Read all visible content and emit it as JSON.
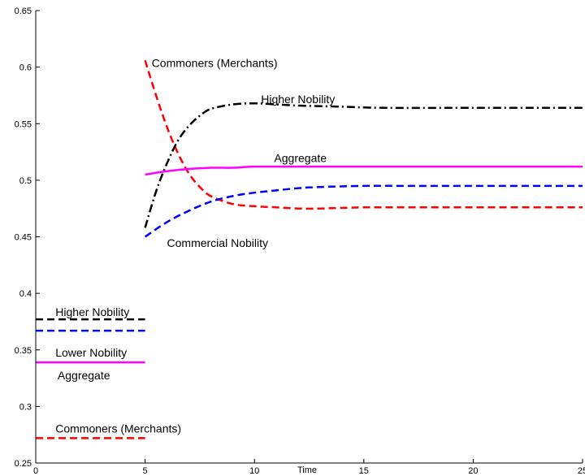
{
  "chart_data": {
    "type": "line",
    "title": "",
    "xlabel": "Time",
    "ylabel": "",
    "xlim": [
      0,
      25
    ],
    "ylim": [
      0.25,
      0.65
    ],
    "xticks": [
      0,
      5,
      10,
      15,
      20,
      25
    ],
    "yticks": [
      0.25,
      0.3,
      0.35,
      0.4,
      0.45,
      0.5,
      0.55,
      0.6,
      0.65
    ],
    "grid": false,
    "legend": "none",
    "series": [
      {
        "key": "pre-higher",
        "color": "#000000",
        "style": "dashed",
        "x": [
          0,
          5
        ],
        "y": [
          0.377,
          0.377
        ]
      },
      {
        "key": "pre-lower",
        "color": "#0000ff",
        "style": "dashed",
        "x": [
          0,
          5
        ],
        "y": [
          0.367,
          0.367
        ]
      },
      {
        "key": "pre-aggregate",
        "color": "#ff00ff",
        "style": "solid",
        "x": [
          0,
          5
        ],
        "y": [
          0.339,
          0.339
        ]
      },
      {
        "key": "pre-commoners",
        "color": "#ff0000",
        "style": "dashed",
        "x": [
          0,
          5
        ],
        "y": [
          0.272,
          0.272
        ]
      },
      {
        "key": "post-commoners",
        "color": "#ff0000",
        "style": "dashed",
        "x": [
          5,
          5.5,
          6,
          6.5,
          7,
          7.5,
          8,
          9,
          10,
          11,
          12,
          13,
          15,
          18,
          20,
          25
        ],
        "y": [
          0.606,
          0.575,
          0.547,
          0.524,
          0.506,
          0.494,
          0.486,
          0.479,
          0.477,
          0.476,
          0.475,
          0.475,
          0.476,
          0.476,
          0.476,
          0.476
        ]
      },
      {
        "key": "post-higher",
        "color": "#000000",
        "style": "dashdot",
        "x": [
          5,
          5.5,
          6,
          6.5,
          7,
          7.5,
          8,
          9,
          10,
          11,
          12,
          14,
          16,
          20,
          25
        ],
        "y": [
          0.458,
          0.49,
          0.515,
          0.535,
          0.548,
          0.557,
          0.563,
          0.567,
          0.568,
          0.567,
          0.566,
          0.565,
          0.564,
          0.564,
          0.564
        ]
      },
      {
        "key": "post-commercial",
        "color": "#0000ff",
        "style": "dashed",
        "x": [
          5,
          6,
          7,
          8,
          9,
          10,
          11,
          12,
          13,
          15,
          17,
          20,
          25
        ],
        "y": [
          0.45,
          0.463,
          0.473,
          0.481,
          0.486,
          0.489,
          0.491,
          0.493,
          0.494,
          0.495,
          0.495,
          0.495,
          0.495
        ]
      },
      {
        "key": "post-aggregate",
        "color": "#ff00ff",
        "style": "solid",
        "x": [
          5,
          6,
          7,
          8,
          9,
          10,
          12,
          15,
          20,
          25
        ],
        "y": [
          0.505,
          0.508,
          0.51,
          0.511,
          0.511,
          0.512,
          0.512,
          0.512,
          0.512,
          0.512
        ]
      }
    ],
    "annotations": [
      {
        "text": "Commoners (Merchants)",
        "x": 5.3,
        "y": 0.6,
        "anchor": "start"
      },
      {
        "text": "Higher Nobility",
        "x": 10.3,
        "y": 0.568,
        "anchor": "start"
      },
      {
        "text": "Aggregate",
        "x": 10.9,
        "y": 0.516,
        "anchor": "start"
      },
      {
        "text": "Commercial Nobility",
        "x": 6.0,
        "y": 0.441,
        "anchor": "start"
      },
      {
        "text": "Higher Nobility",
        "x": 0.9,
        "y": 0.38,
        "anchor": "start"
      },
      {
        "text": "Lower Nobility",
        "x": 0.9,
        "y": 0.344,
        "anchor": "start"
      },
      {
        "text": "Aggregate",
        "x": 1.0,
        "y": 0.324,
        "anchor": "start"
      },
      {
        "text": "Commoners (Merchants)",
        "x": 0.9,
        "y": 0.277,
        "anchor": "start"
      }
    ]
  }
}
